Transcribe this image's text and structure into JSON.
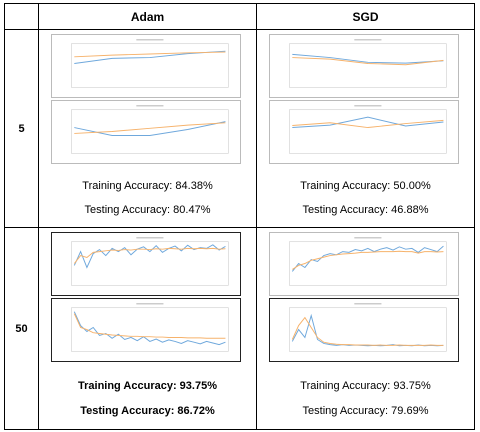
{
  "headers": {
    "corner": "",
    "adam": "Adam",
    "sgd": "SGD"
  },
  "colors": {
    "blue": "#6fa8dc",
    "orange": "#f6b26b"
  },
  "rows": [
    {
      "label": "5",
      "adam": {
        "train_text": "Training Accuracy: 84.38%",
        "test_text": "Testing Accuracy: 80.47%",
        "bold": false,
        "acc_chart": {
          "type": "line",
          "series": [
            {
              "values": [
                0.55,
                0.68,
                0.7,
                0.8,
                0.86
              ]
            },
            {
              "values": [
                0.72,
                0.76,
                0.79,
                0.82,
                0.84
              ]
            }
          ]
        },
        "loss_chart": {
          "type": "line",
          "series": [
            {
              "values": [
                0.6,
                0.4,
                0.4,
                0.55,
                0.75
              ]
            },
            {
              "values": [
                0.45,
                0.5,
                0.58,
                0.66,
                0.72
              ]
            }
          ]
        }
      },
      "sgd": {
        "train_text": "Training Accuracy: 50.00%",
        "test_text": "Testing Accuracy: 46.88%",
        "bold": false,
        "acc_chart": {
          "type": "line",
          "series": [
            {
              "values": [
                0.78,
                0.7,
                0.58,
                0.56,
                0.62
              ]
            },
            {
              "values": [
                0.7,
                0.66,
                0.55,
                0.52,
                0.63
              ]
            }
          ]
        },
        "loss_chart": {
          "type": "line",
          "series": [
            {
              "values": [
                0.6,
                0.66,
                0.86,
                0.64,
                0.74
              ]
            },
            {
              "values": [
                0.65,
                0.72,
                0.6,
                0.7,
                0.78
              ]
            }
          ]
        }
      }
    },
    {
      "label": "50",
      "adam": {
        "train_text": "Training Accuracy: 93.75%",
        "test_text": "Testing Accuracy: 86.72%",
        "bold": true,
        "acc_chart": {
          "type": "line",
          "series": [
            {
              "values": [
                0.45,
                0.8,
                0.4,
                0.75,
                0.85,
                0.7,
                0.88,
                0.8,
                0.9,
                0.72,
                0.86,
                0.92,
                0.8,
                0.95,
                0.78,
                0.88,
                0.94,
                0.82,
                0.96,
                0.85,
                0.9,
                0.88,
                0.97,
                0.84,
                0.93
              ]
            },
            {
              "values": [
                0.5,
                0.7,
                0.65,
                0.78,
                0.8,
                0.82,
                0.84,
                0.83,
                0.85,
                0.84,
                0.86,
                0.86,
                0.85,
                0.87,
                0.86,
                0.88,
                0.87,
                0.86,
                0.88,
                0.87,
                0.88,
                0.87,
                0.88,
                0.86,
                0.87
              ]
            }
          ]
        },
        "loss_chart": {
          "type": "line",
          "series": [
            {
              "values": [
                0.95,
                0.6,
                0.45,
                0.55,
                0.35,
                0.4,
                0.28,
                0.38,
                0.25,
                0.3,
                0.22,
                0.32,
                0.2,
                0.26,
                0.18,
                0.24,
                0.2,
                0.15,
                0.22,
                0.18,
                0.14,
                0.2,
                0.16,
                0.12,
                0.18
              ]
            },
            {
              "values": [
                0.9,
                0.55,
                0.5,
                0.42,
                0.4,
                0.38,
                0.36,
                0.35,
                0.34,
                0.33,
                0.33,
                0.32,
                0.32,
                0.31,
                0.31,
                0.3,
                0.3,
                0.3,
                0.29,
                0.29,
                0.29,
                0.28,
                0.28,
                0.28,
                0.28
              ]
            }
          ]
        }
      },
      "sgd": {
        "train_text": "Training Accuracy: 93.75%",
        "test_text": "Testing Accuracy: 79.69%",
        "bold": false,
        "acc_chart": {
          "type": "line",
          "series": [
            {
              "values": [
                0.3,
                0.5,
                0.4,
                0.6,
                0.55,
                0.7,
                0.75,
                0.72,
                0.8,
                0.78,
                0.85,
                0.82,
                0.88,
                0.8,
                0.86,
                0.9,
                0.84,
                0.92,
                0.86,
                0.88,
                0.78,
                0.9,
                0.85,
                0.8,
                0.94
              ]
            },
            {
              "values": [
                0.35,
                0.45,
                0.5,
                0.58,
                0.62,
                0.66,
                0.7,
                0.72,
                0.74,
                0.75,
                0.76,
                0.78,
                0.78,
                0.79,
                0.8,
                0.8,
                0.8,
                0.81,
                0.8,
                0.8,
                0.76,
                0.8,
                0.8,
                0.79,
                0.8
              ]
            }
          ]
        },
        "loss_chart": {
          "type": "line",
          "series": [
            {
              "values": [
                0.2,
                0.5,
                0.3,
                0.85,
                0.25,
                0.15,
                0.12,
                0.1,
                0.12,
                0.1,
                0.11,
                0.1,
                0.09,
                0.1,
                0.09,
                0.1,
                0.12,
                0.09,
                0.1,
                0.09,
                0.11,
                0.09,
                0.1,
                0.09,
                0.1
              ]
            },
            {
              "values": [
                0.25,
                0.6,
                0.8,
                0.55,
                0.3,
                0.18,
                0.15,
                0.13,
                0.12,
                0.12,
                0.11,
                0.11,
                0.11,
                0.1,
                0.11,
                0.1,
                0.1,
                0.11,
                0.1,
                0.1,
                0.1,
                0.1,
                0.11,
                0.1,
                0.1
              ]
            }
          ]
        }
      }
    }
  ]
}
